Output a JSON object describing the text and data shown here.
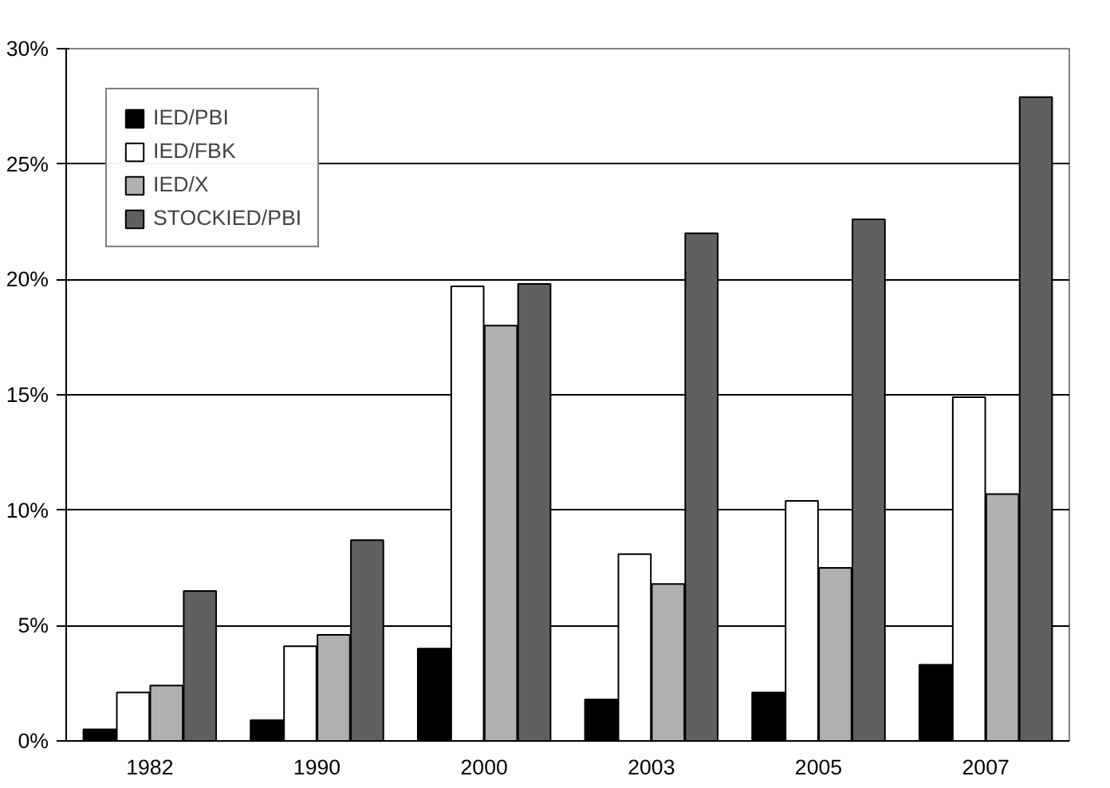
{
  "chart_data": {
    "type": "bar",
    "categories": [
      "1982",
      "1990",
      "2000",
      "2003",
      "2005",
      "2007"
    ],
    "series": [
      {
        "name": "IED/PBI",
        "color": "#000000",
        "values": [
          0.5,
          0.9,
          4.0,
          1.8,
          2.1,
          3.3
        ]
      },
      {
        "name": "IED/FBK",
        "color": "#ffffff",
        "values": [
          2.1,
          4.1,
          19.7,
          8.1,
          10.4,
          14.9
        ]
      },
      {
        "name": "IED/X",
        "color": "#b0b0b0",
        "values": [
          2.4,
          4.6,
          18.0,
          6.8,
          7.5,
          10.7
        ]
      },
      {
        "name": "STOCKIED/PBI",
        "color": "#606060",
        "values": [
          6.5,
          8.7,
          19.8,
          22.0,
          22.6,
          27.9
        ]
      }
    ],
    "ylim": [
      0,
      30
    ],
    "yticks": [
      {
        "value": 0,
        "label": "0%"
      },
      {
        "value": 5,
        "label": "5%"
      },
      {
        "value": 10,
        "label": "10%"
      },
      {
        "value": 15,
        "label": "15%"
      },
      {
        "value": 20,
        "label": "20%"
      },
      {
        "value": 25,
        "label": "25%"
      },
      {
        "value": 30,
        "label": "30%"
      }
    ],
    "grid": "y",
    "legend": "top left"
  }
}
